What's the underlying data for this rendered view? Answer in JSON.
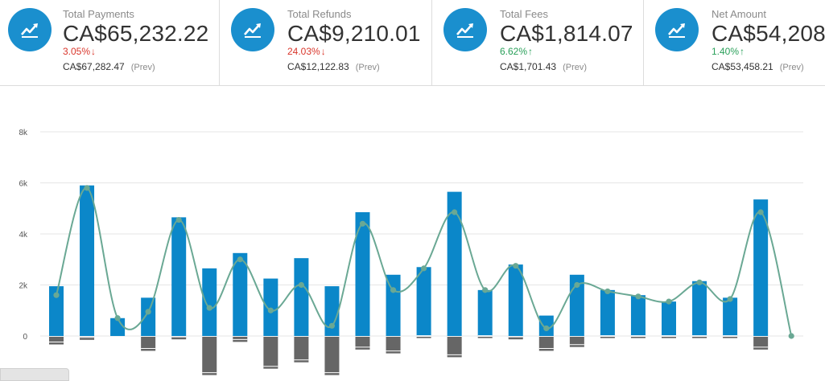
{
  "kpis": [
    {
      "label": "Total Payments",
      "value": "CA$65,232.22",
      "change": "3.05%",
      "direction": "down",
      "prev": "CA$67,282.47",
      "prev_tag": "(Prev)",
      "icon": "trend-up-icon"
    },
    {
      "label": "Total Refunds",
      "value": "CA$9,210.01",
      "change": "24.03%",
      "direction": "down",
      "prev": "CA$12,122.83",
      "prev_tag": "(Prev)",
      "icon": "trend-up-icon"
    },
    {
      "label": "Total Fees",
      "value": "CA$1,814.07",
      "change": "6.62%",
      "direction": "up",
      "prev": "CA$1,701.43",
      "prev_tag": "(Prev)",
      "icon": "trend-up-icon"
    },
    {
      "label": "Net Amount",
      "value": "CA$54,208",
      "change": "1.40%",
      "direction": "up",
      "prev": "CA$53,458.21",
      "prev_tag": "(Prev)",
      "icon": "trend-up-icon"
    }
  ],
  "colors": {
    "accent": "#1a8fce",
    "down": "#d9362b",
    "up": "#2aa05a",
    "bar_positive": "#0b87c9",
    "bar_negative": "#666666",
    "line": "#6aa894"
  },
  "chart_data": {
    "type": "bar",
    "y_ticks": [
      "8k",
      "6k",
      "4k",
      "2k",
      "0"
    ],
    "ylim": [
      -1500,
      8000
    ],
    "grid": true,
    "series": [
      {
        "type": "bar",
        "values": [
          1950,
          5900,
          700,
          1500,
          4650,
          2650,
          3250,
          2250,
          3050,
          1950,
          4850,
          2400,
          2700,
          5650,
          1800,
          2800,
          800,
          2400,
          1800,
          1600,
          1350,
          2150,
          1500,
          5350,
          0
        ]
      },
      {
        "type": "bar",
        "values": [
          -300,
          -120,
          0,
          -550,
          -100,
          -1500,
          -200,
          -1250,
          -1000,
          -1500,
          -500,
          -650,
          -50,
          -800,
          -50,
          -100,
          -550,
          -400,
          -50,
          -50,
          -50,
          -50,
          -50,
          -500,
          0
        ]
      },
      {
        "type": "line",
        "values": [
          1600,
          5800,
          700,
          950,
          4550,
          1100,
          3000,
          1000,
          2000,
          400,
          4400,
          1800,
          2650,
          4850,
          1800,
          2750,
          300,
          2000,
          1750,
          1550,
          1350,
          2100,
          1450,
          4850,
          0
        ]
      }
    ]
  }
}
